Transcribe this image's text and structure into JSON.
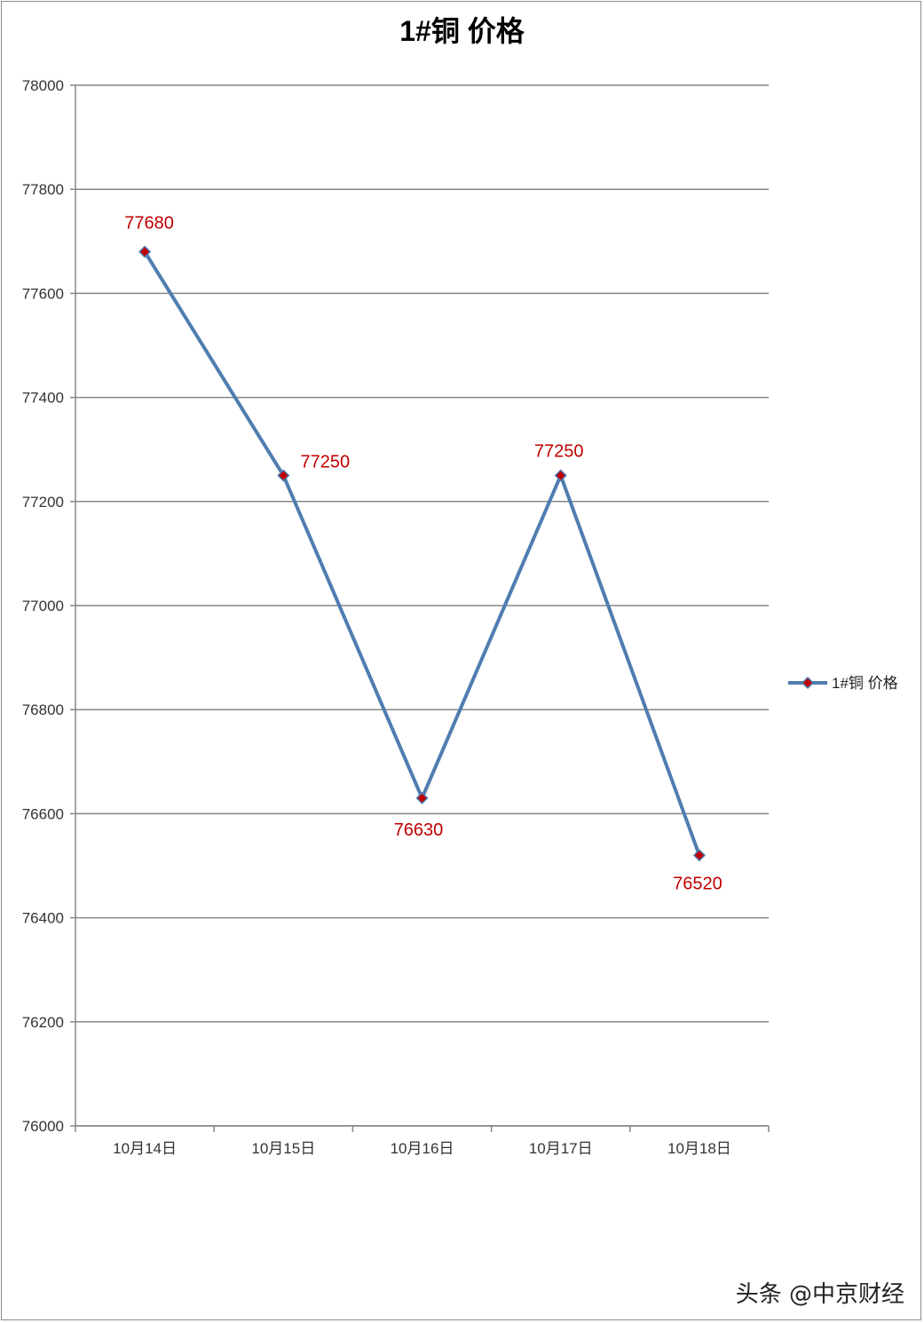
{
  "chart_data": {
    "type": "line",
    "title": "1#铜 价格",
    "xlabel": "",
    "ylabel": "",
    "categories": [
      "10月14日",
      "10月15日",
      "10月16日",
      "10月17日",
      "10月18日"
    ],
    "series": [
      {
        "name": "1#铜 价格",
        "values": [
          77680,
          77250,
          76630,
          77250,
          76520
        ]
      }
    ],
    "ylim": [
      76000,
      78000
    ],
    "yticks": [
      76000,
      76200,
      76400,
      76600,
      76800,
      77000,
      77200,
      77400,
      77600,
      77800,
      78000
    ],
    "grid": true,
    "legend": "right",
    "colors": {
      "line": "#4f7db0",
      "marker": "#c00000",
      "labels": "#c00000",
      "grid": "#868686"
    }
  },
  "watermark": "头条 @中京财经"
}
